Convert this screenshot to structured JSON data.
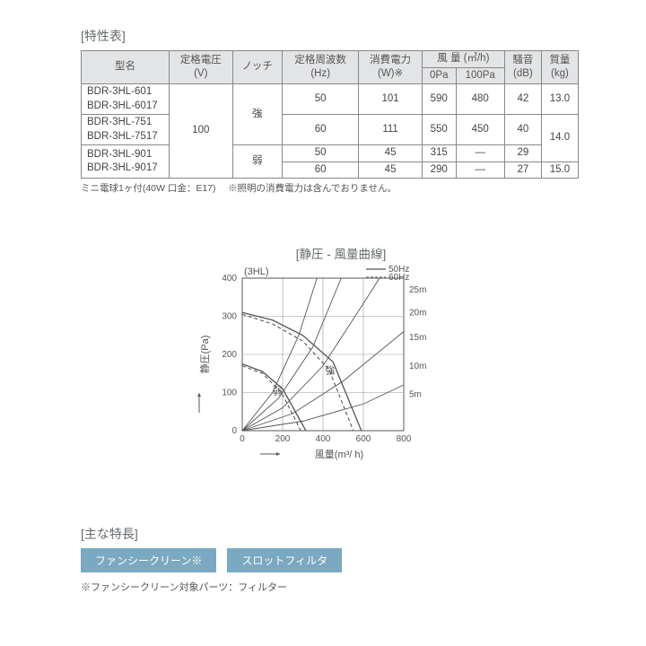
{
  "spec_table": {
    "title": "[特性表]",
    "headers": {
      "model": "型名",
      "voltage": "定格電圧\n(V)",
      "notch": "ノッチ",
      "freq": "定格周波数\n(Hz)",
      "power": "消費電力\n(W)※",
      "airflow": "風 量  (㎥/h)",
      "air_0pa": "0Pa",
      "air_100pa": "100Pa",
      "noise": "騒音\n(dB)",
      "mass": "質量\n(kg)"
    },
    "voltage_value": "100",
    "notch_strong": "強",
    "notch_weak": "弱",
    "models": {
      "r1a": "BDR-3HL-601",
      "r1b": "BDR-3HL-6017",
      "r2a": "BDR-3HL-751",
      "r2b": "BDR-3HL-7517",
      "r3a": "BDR-3HL-901",
      "r3b": "BDR-3HL-9017"
    },
    "rows": [
      {
        "freq": "50",
        "power": "101",
        "air0": "590",
        "air100": "480",
        "noise": "42"
      },
      {
        "freq": "60",
        "power": "111",
        "air0": "550",
        "air100": "450",
        "noise": "40"
      },
      {
        "freq": "50",
        "power": "45",
        "air0": "315",
        "air100": "—",
        "noise": "29"
      },
      {
        "freq": "60",
        "power": "45",
        "air0": "290",
        "air100": "—",
        "noise": "27"
      }
    ],
    "mass": [
      "13.0",
      "14.0",
      "15.0"
    ],
    "footnote": "ミニ電球1ヶ付(40W 口金：E17)　 ※照明の消費電力は含んでおりません。"
  },
  "chart": {
    "title": "[静圧 - 風量曲線]",
    "subtitle": "(3HL)",
    "legend_50": "50Hz",
    "legend_60": "60Hz",
    "ylabel": "静圧(Pa)",
    "xlabel": "風量(m³/ h)",
    "xlim": [
      0,
      800
    ],
    "ylim": [
      0,
      400
    ],
    "xticks": [
      0,
      200,
      400,
      600,
      800
    ],
    "yticks": [
      0,
      100,
      200,
      300,
      400
    ],
    "duct_labels": [
      "5m",
      "10m",
      "15m",
      "20m",
      "25m"
    ],
    "mark_strong": "強",
    "mark_weak": "弱",
    "axis_color": "#555",
    "grid_color": "#999",
    "fan_50_strong": [
      [
        0,
        310
      ],
      [
        150,
        290
      ],
      [
        300,
        250
      ],
      [
        450,
        180
      ],
      [
        590,
        0
      ]
    ],
    "fan_60_strong": [
      [
        0,
        305
      ],
      [
        150,
        280
      ],
      [
        300,
        235
      ],
      [
        430,
        160
      ],
      [
        550,
        0
      ]
    ],
    "fan_50_weak": [
      [
        0,
        175
      ],
      [
        100,
        155
      ],
      [
        200,
        110
      ],
      [
        315,
        0
      ]
    ],
    "fan_60_weak": [
      [
        0,
        170
      ],
      [
        100,
        150
      ],
      [
        195,
        100
      ],
      [
        290,
        0
      ]
    ],
    "duct_curves": {
      "5m": [
        [
          0,
          0
        ],
        [
          300,
          25
        ],
        [
          600,
          70
        ],
        [
          800,
          120
        ]
      ],
      "10m": [
        [
          0,
          0
        ],
        [
          250,
          45
        ],
        [
          500,
          130
        ],
        [
          800,
          260
        ]
      ],
      "15m": [
        [
          0,
          0
        ],
        [
          200,
          60
        ],
        [
          400,
          170
        ],
        [
          620,
          350
        ],
        [
          680,
          400
        ]
      ],
      "20m": [
        [
          0,
          0
        ],
        [
          180,
          85
        ],
        [
          350,
          220
        ],
        [
          490,
          400
        ]
      ],
      "25m": [
        [
          0,
          0
        ],
        [
          150,
          100
        ],
        [
          280,
          250
        ],
        [
          370,
          400
        ]
      ]
    }
  },
  "features": {
    "title": "[主な特長]",
    "badges": [
      "ファンシークリーン※",
      "スロットフィルタ"
    ],
    "note": "※ファンシークリーン対象パーツ：フィルター"
  }
}
